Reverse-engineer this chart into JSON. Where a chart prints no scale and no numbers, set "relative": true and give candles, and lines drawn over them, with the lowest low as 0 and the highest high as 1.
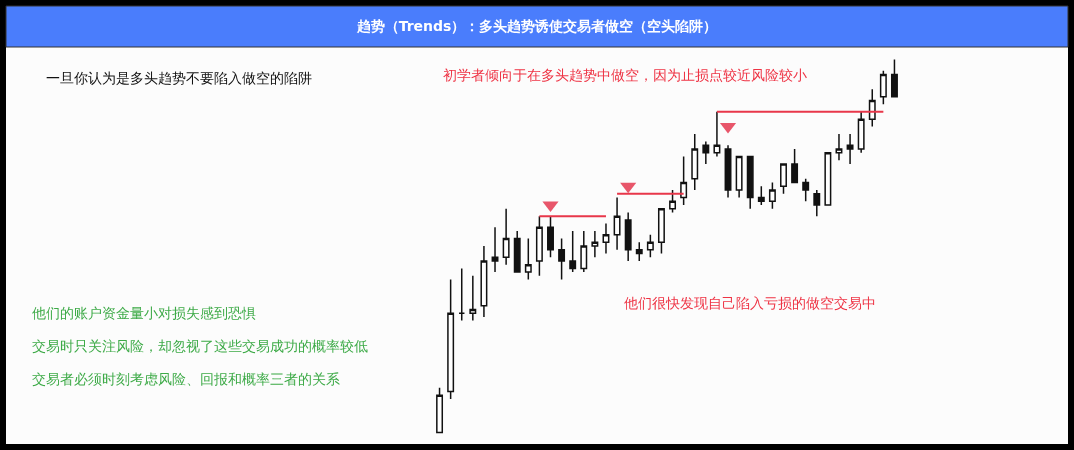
{
  "chart_data": {
    "type": "candlestick",
    "title": "趋势（Trends）：多头趋势诱使交易者做空（空头陷阱）",
    "relative": true,
    "categories": [
      null,
      null,
      null,
      null,
      null,
      null,
      null,
      null,
      null,
      null,
      null,
      null,
      null,
      null,
      null,
      null,
      null,
      null,
      null,
      null,
      null,
      null,
      null,
      null,
      null,
      null,
      null,
      null,
      null,
      null,
      null,
      null,
      null,
      null,
      null,
      null,
      null,
      null,
      null,
      null,
      null,
      null
    ],
    "ohlc": [
      [
        0.0,
        0.12,
        0.0,
        0.1
      ],
      [
        0.11,
        0.41,
        0.09,
        0.32
      ],
      [
        0.32,
        0.44,
        0.3,
        0.32
      ],
      [
        0.32,
        0.42,
        0.3,
        0.33
      ],
      [
        0.34,
        0.5,
        0.31,
        0.46
      ],
      [
        0.47,
        0.55,
        0.43,
        0.46
      ],
      [
        0.47,
        0.6,
        0.45,
        0.52
      ],
      [
        0.52,
        0.54,
        0.43,
        0.43
      ],
      [
        0.43,
        0.52,
        0.41,
        0.45
      ],
      [
        0.46,
        0.58,
        0.42,
        0.55
      ],
      [
        0.55,
        0.58,
        0.47,
        0.49
      ],
      [
        0.49,
        0.52,
        0.41,
        0.46
      ],
      [
        0.46,
        0.54,
        0.43,
        0.44
      ],
      [
        0.44,
        0.54,
        0.43,
        0.5
      ],
      [
        0.5,
        0.54,
        0.47,
        0.51
      ],
      [
        0.51,
        0.56,
        0.48,
        0.53
      ],
      [
        0.53,
        0.63,
        0.49,
        0.58
      ],
      [
        0.57,
        0.59,
        0.46,
        0.49
      ],
      [
        0.49,
        0.51,
        0.46,
        0.48
      ],
      [
        0.49,
        0.53,
        0.47,
        0.51
      ],
      [
        0.51,
        0.6,
        0.48,
        0.6
      ],
      [
        0.6,
        0.65,
        0.59,
        0.62
      ],
      [
        0.63,
        0.74,
        0.61,
        0.67
      ],
      [
        0.68,
        0.8,
        0.65,
        0.76
      ],
      [
        0.77,
        0.78,
        0.72,
        0.75
      ],
      [
        0.75,
        0.86,
        0.74,
        0.77
      ],
      [
        0.76,
        0.77,
        0.63,
        0.65
      ],
      [
        0.65,
        0.74,
        0.63,
        0.74
      ],
      [
        0.74,
        0.74,
        0.6,
        0.63
      ],
      [
        0.63,
        0.66,
        0.61,
        0.62
      ],
      [
        0.62,
        0.67,
        0.6,
        0.65
      ],
      [
        0.66,
        0.72,
        0.64,
        0.72
      ],
      [
        0.72,
        0.76,
        0.67,
        0.67
      ],
      [
        0.67,
        0.68,
        0.62,
        0.65
      ],
      [
        0.64,
        0.65,
        0.58,
        0.61
      ],
      [
        0.61,
        0.75,
        0.61,
        0.75
      ],
      [
        0.75,
        0.8,
        0.73,
        0.76
      ],
      [
        0.77,
        0.8,
        0.72,
        0.76
      ],
      [
        0.76,
        0.86,
        0.75,
        0.84
      ],
      [
        0.84,
        0.92,
        0.82,
        0.89
      ],
      [
        0.9,
        0.97,
        0.88,
        0.96
      ],
      [
        0.96,
        1.0,
        0.9,
        0.9
      ]
    ],
    "series": [
      {
        "type": "line",
        "color": "#e8374a",
        "values": [
          null,
          null,
          null,
          null,
          null,
          null,
          null,
          null,
          null,
          0.58,
          0.58,
          0.58,
          0.58,
          0.58,
          0.58,
          0.58,
          null,
          null,
          null,
          null,
          null,
          null,
          null,
          null,
          null,
          null,
          null,
          null,
          null,
          null,
          null,
          null,
          null,
          null,
          null,
          null,
          null,
          null,
          null,
          null,
          null,
          null
        ]
      },
      {
        "type": "line",
        "color": "#e8374a",
        "values": [
          null,
          null,
          null,
          null,
          null,
          null,
          null,
          null,
          null,
          null,
          null,
          null,
          null,
          null,
          null,
          null,
          0.64,
          0.64,
          0.64,
          0.64,
          0.64,
          0.64,
          0.64,
          null,
          null,
          null,
          null,
          null,
          null,
          null,
          null,
          null,
          null,
          null,
          null,
          null,
          null,
          null,
          null,
          null,
          null,
          null
        ]
      },
      {
        "type": "line",
        "color": "#e8374a",
        "values": [
          null,
          null,
          null,
          null,
          null,
          null,
          null,
          null,
          null,
          null,
          null,
          null,
          null,
          null,
          null,
          null,
          null,
          null,
          null,
          null,
          null,
          null,
          null,
          null,
          null,
          0.86,
          0.86,
          0.86,
          0.86,
          0.86,
          0.86,
          0.86,
          0.86,
          0.86,
          0.86,
          0.86,
          0.86,
          0.86,
          0.86,
          0.86,
          0.86,
          null
        ]
      },
      {
        "type": "scatter",
        "marker": "triangle",
        "color": "#e8566a",
        "values": [
          null,
          null,
          null,
          null,
          null,
          null,
          null,
          null,
          null,
          null,
          0.61,
          null,
          null,
          null,
          null,
          null,
          null,
          0.66,
          null,
          null,
          null,
          null,
          null,
          null,
          null,
          null,
          0.82,
          null,
          null,
          null,
          null,
          null,
          null,
          null,
          null,
          null,
          null,
          null,
          null,
          null,
          null,
          null
        ]
      }
    ],
    "annotations": [
      "一旦你认为是多头趋势不要陷入做空的陷阱",
      "初学者倾向于在多头趋势中做空，因为止损点较近风险较小",
      "他们的账户资金量小对损失感到恐惧",
      "交易时只关注风险，却忽视了这些交易成功的概率较低",
      "交易者必须时刻考虑风险、回报和概率三者的关系",
      "他们很快发现自己陷入亏损的做空交易中"
    ]
  }
}
